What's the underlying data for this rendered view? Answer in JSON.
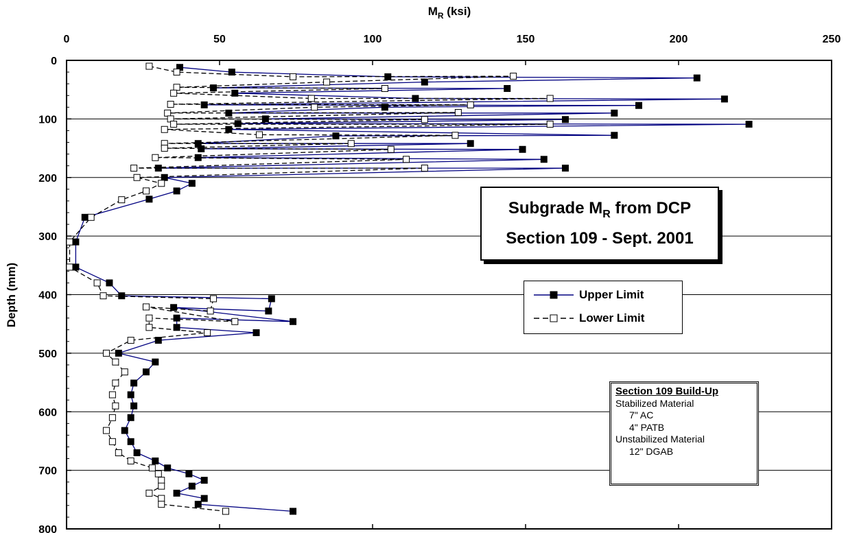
{
  "chart_data": {
    "type": "line",
    "title": "Subgrade M",
    "title_sub": "R",
    "title_after": " from DCP",
    "subtitle": "Section 109 - Sept. 2001",
    "xlabel_main": "M",
    "xlabel_sub": "R",
    "xlabel_unit": " (ksi)",
    "ylabel": "Depth (mm)",
    "xlim": [
      0,
      250
    ],
    "ylim": [
      800,
      0
    ],
    "x_ticks": [
      "0",
      "50",
      "100",
      "150",
      "200",
      "250"
    ],
    "y_ticks": [
      "0",
      "100",
      "200",
      "300",
      "400",
      "500",
      "600",
      "700",
      "800"
    ],
    "grid": "horizontal",
    "legend_position": "center-right",
    "series": [
      {
        "name": "Upper Limit",
        "color": "#000080",
        "style": "solid",
        "marker": "filled-square",
        "points": [
          [
            37,
            12
          ],
          [
            54,
            20
          ],
          [
            105,
            28
          ],
          [
            206,
            30
          ],
          [
            117,
            37
          ],
          [
            48,
            47
          ],
          [
            144,
            48
          ],
          [
            55,
            56
          ],
          [
            114,
            65
          ],
          [
            215,
            66
          ],
          [
            45,
            76
          ],
          [
            187,
            77
          ],
          [
            104,
            80
          ],
          [
            53,
            90
          ],
          [
            179,
            90
          ],
          [
            65,
            100
          ],
          [
            163,
            101
          ],
          [
            56,
            108
          ],
          [
            223,
            109
          ],
          [
            53,
            118
          ],
          [
            179,
            128
          ],
          [
            88,
            129
          ],
          [
            43,
            142
          ],
          [
            132,
            142
          ],
          [
            44,
            151
          ],
          [
            149,
            152
          ],
          [
            43,
            166
          ],
          [
            156,
            169
          ],
          [
            30,
            184
          ],
          [
            163,
            184
          ],
          [
            32,
            200
          ],
          [
            41,
            210
          ],
          [
            36,
            223
          ],
          [
            27,
            237
          ],
          [
            6,
            268
          ],
          [
            3,
            310
          ],
          [
            3,
            353
          ],
          [
            14,
            380
          ],
          [
            18,
            402
          ],
          [
            67,
            407
          ],
          [
            66,
            428
          ],
          [
            35,
            422
          ],
          [
            74,
            446
          ],
          [
            36,
            440
          ],
          [
            36,
            456
          ],
          [
            62,
            465
          ],
          [
            30,
            478
          ],
          [
            17,
            500
          ],
          [
            29,
            515
          ],
          [
            26,
            532
          ],
          [
            22,
            551
          ],
          [
            21,
            571
          ],
          [
            22,
            590
          ],
          [
            21,
            610
          ],
          [
            19,
            632
          ],
          [
            21,
            651
          ],
          [
            23,
            670
          ],
          [
            29,
            684
          ],
          [
            33,
            696
          ],
          [
            40,
            706
          ],
          [
            45,
            717
          ],
          [
            41,
            727
          ],
          [
            36,
            739
          ],
          [
            45,
            748
          ],
          [
            43,
            758
          ],
          [
            74,
            770
          ]
        ]
      },
      {
        "name": "Lower Limit",
        "color": "#000000",
        "style": "dashed",
        "marker": "open-square",
        "points": [
          [
            27,
            10
          ],
          [
            36,
            20
          ],
          [
            74,
            28
          ],
          [
            146,
            27
          ],
          [
            85,
            37
          ],
          [
            36,
            46
          ],
          [
            104,
            48
          ],
          [
            35,
            56
          ],
          [
            80,
            65
          ],
          [
            158,
            65
          ],
          [
            34,
            75
          ],
          [
            132,
            76
          ],
          [
            81,
            80
          ],
          [
            33,
            90
          ],
          [
            128,
            89
          ],
          [
            34,
            100
          ],
          [
            117,
            101
          ],
          [
            35,
            109
          ],
          [
            158,
            109
          ],
          [
            32,
            118
          ],
          [
            63,
            127
          ],
          [
            127,
            128
          ],
          [
            32,
            142
          ],
          [
            93,
            142
          ],
          [
            32,
            150
          ],
          [
            106,
            152
          ],
          [
            29,
            166
          ],
          [
            111,
            169
          ],
          [
            22,
            184
          ],
          [
            117,
            184
          ],
          [
            23,
            200
          ],
          [
            31,
            210
          ],
          [
            26,
            223
          ],
          [
            18,
            238
          ],
          [
            8,
            268
          ],
          [
            1,
            310
          ],
          [
            1,
            353
          ],
          [
            10,
            380
          ],
          [
            12,
            402
          ],
          [
            48,
            407
          ],
          [
            47,
            428
          ],
          [
            26,
            421
          ],
          [
            55,
            446
          ],
          [
            27,
            440
          ],
          [
            27,
            456
          ],
          [
            46,
            465
          ],
          [
            21,
            478
          ],
          [
            13,
            500
          ],
          [
            16,
            515
          ],
          [
            19,
            532
          ],
          [
            16,
            551
          ],
          [
            15,
            571
          ],
          [
            16,
            590
          ],
          [
            15,
            610
          ],
          [
            13,
            632
          ],
          [
            15,
            651
          ],
          [
            17,
            670
          ],
          [
            21,
            684
          ],
          [
            28,
            696
          ],
          [
            30,
            706
          ],
          [
            31,
            717
          ],
          [
            31,
            727
          ],
          [
            27,
            739
          ],
          [
            31,
            748
          ],
          [
            31,
            758
          ],
          [
            52,
            770
          ]
        ]
      }
    ]
  },
  "buildup": {
    "heading": "Section 109 Build-Up",
    "line1": "Stabilized Material",
    "line2": "7\" AC",
    "line3": "4\" PATB",
    "line4": "Unstabilized Material",
    "line5": "12\" DGAB"
  }
}
